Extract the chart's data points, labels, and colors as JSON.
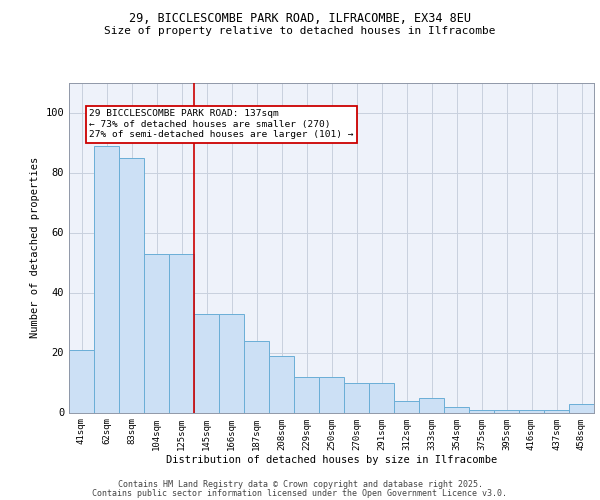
{
  "title_line1": "29, BICCLESCOMBE PARK ROAD, ILFRACOMBE, EX34 8EU",
  "title_line2": "Size of property relative to detached houses in Ilfracombe",
  "xlabel": "Distribution of detached houses by size in Ilfracombe",
  "ylabel": "Number of detached properties",
  "bar_labels": [
    "41sqm",
    "62sqm",
    "83sqm",
    "104sqm",
    "125sqm",
    "145sqm",
    "166sqm",
    "187sqm",
    "208sqm",
    "229sqm",
    "250sqm",
    "270sqm",
    "291sqm",
    "312sqm",
    "333sqm",
    "354sqm",
    "375sqm",
    "395sqm",
    "416sqm",
    "437sqm",
    "458sqm"
  ],
  "bar_values": [
    21,
    89,
    85,
    53,
    53,
    33,
    33,
    24,
    19,
    12,
    12,
    10,
    10,
    4,
    5,
    2,
    1,
    1,
    1,
    1,
    3
  ],
  "bar_color": "#cce0f5",
  "bar_edge_color": "#6aaed6",
  "vline_x": 4.5,
  "vline_color": "#cc0000",
  "annotation_text": "29 BICCLESCOMBE PARK ROAD: 137sqm\n← 73% of detached houses are smaller (270)\n27% of semi-detached houses are larger (101) →",
  "annotation_box_color": "#cc0000",
  "annotation_bg": "#ffffff",
  "grid_color": "#c8d0de",
  "bg_color": "#eef2fa",
  "ylim": [
    0,
    110
  ],
  "yticks": [
    0,
    20,
    40,
    60,
    80,
    100
  ],
  "footer_line1": "Contains HM Land Registry data © Crown copyright and database right 2025.",
  "footer_line2": "Contains public sector information licensed under the Open Government Licence v3.0."
}
